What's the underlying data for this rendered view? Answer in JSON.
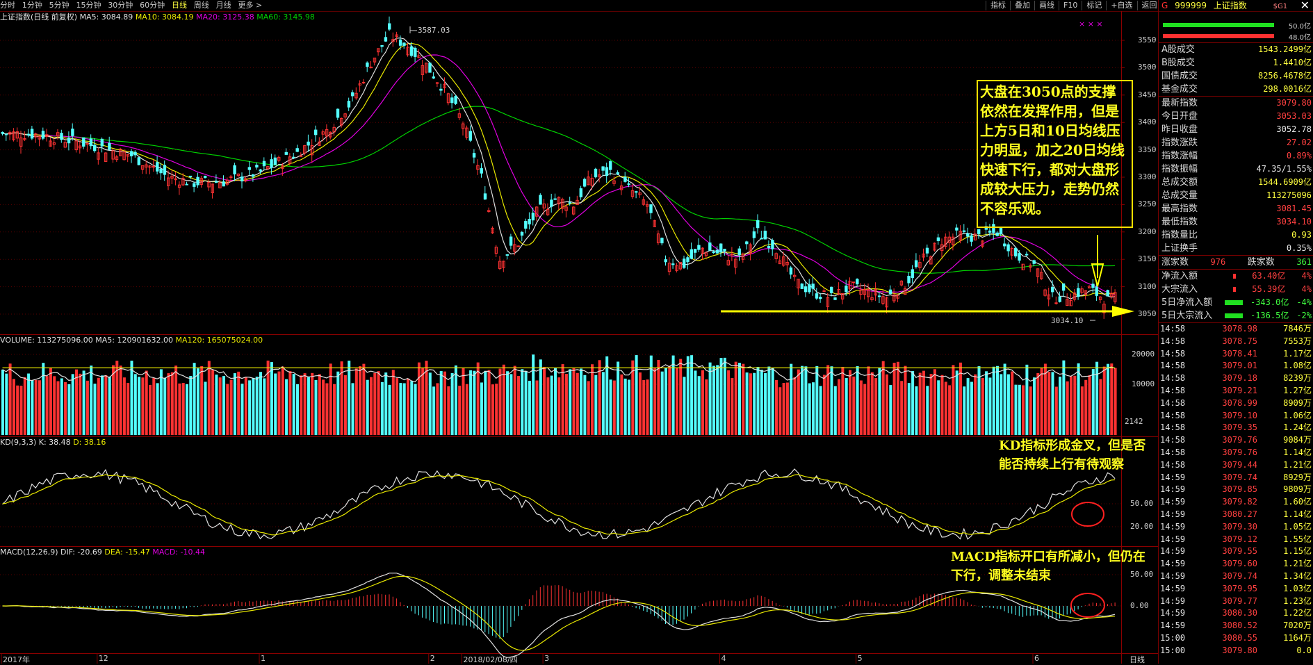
{
  "toolbar": {
    "periods": [
      "分时",
      "1分钟",
      "5分钟",
      "15分钟",
      "30分钟",
      "60分钟",
      "日线",
      "周线",
      "月线",
      "更多 >"
    ],
    "active_period": "日线",
    "right_tools": [
      "指标",
      "叠加",
      "画线",
      "F10",
      "标记",
      "+自选",
      "返回"
    ]
  },
  "main_legend": {
    "title": "上证指数(日线 前复权)",
    "ma5": "MA5: 3084.89",
    "ma10": "MA10: 3084.19",
    "ma20": "MA20: 3125.38",
    "ma60": "MA60: 3145.98"
  },
  "price_axis": [
    "3550",
    "3500",
    "3450",
    "3400",
    "3350",
    "3300",
    "3250",
    "3200",
    "3150",
    "3100",
    "3050"
  ],
  "high_label": "3587.03",
  "low_label": "3034.10",
  "note_main": "大盘在3050点的支撑依然在发挥作用，但是上方5日和10日均线压力明显，加之20日均线快速下行，都对大盘形成较大压力，走势仍然不容乐观。",
  "volume_legend": {
    "volume": "VOLUME: 113275096.00",
    "ma5": "MA5: 120901632.00",
    "ma120": "MA120: 165075024.00"
  },
  "volume_axis": [
    "20000",
    "10000"
  ],
  "volume_unit_label": "2142",
  "kd_legend": {
    "name": "KD(9,3,3)",
    "k": "K: 38.48",
    "d": "D: 38.16"
  },
  "kd_axis": [
    "50.00",
    "20.00"
  ],
  "note_kd": "KD指标形成金叉，但是否能否持续上行有待观察",
  "macd_legend": {
    "name": "MACD(12,26,9)",
    "dif": "DIF: -20.69",
    "dea": "DEA: -15.47",
    "macd": "MACD: -10.44"
  },
  "macd_axis": [
    "50.00",
    "0.00"
  ],
  "note_macd": "MACD指标开口有所减小，但仍在下行，调整未结束",
  "x_axis": [
    "2017年",
    "12",
    "1",
    "2",
    "2018/02/08/四",
    "3",
    "4",
    "5",
    "6"
  ],
  "x_mode": "日线",
  "stock_header": {
    "flag": "G",
    "code": "999999",
    "name": "上证指数",
    "mark": "$G1"
  },
  "ratio": {
    "top": "50.0亿",
    "bottom": "48.0亿"
  },
  "quotes": [
    {
      "label": "A股成交",
      "value": "1543.2499亿",
      "tone": "yl"
    },
    {
      "label": "B股成交",
      "value": "1.4410亿",
      "tone": "yl"
    },
    {
      "label": "国债成交",
      "value": "8256.4678亿",
      "tone": "yl"
    },
    {
      "label": "基金成交",
      "value": "298.0016亿",
      "tone": "yl"
    },
    {
      "label": "最新指数",
      "value": "3079.80",
      "tone": "up"
    },
    {
      "label": "今日开盘",
      "value": "3053.03",
      "tone": "up"
    },
    {
      "label": "昨日收盘",
      "value": "3052.78",
      "tone": "w"
    },
    {
      "label": "指数涨跌",
      "value": "27.02",
      "tone": "up"
    },
    {
      "label": "指数涨幅",
      "value": "0.89%",
      "tone": "up"
    },
    {
      "label": "指数振幅",
      "value": "47.35/1.55%",
      "tone": "w"
    },
    {
      "label": "总成交额",
      "value": "1544.6909亿",
      "tone": "yl"
    },
    {
      "label": "总成交量",
      "value": "113275096",
      "tone": "yl"
    },
    {
      "label": "最高指数",
      "value": "3081.45",
      "tone": "up"
    },
    {
      "label": "最低指数",
      "value": "3034.10",
      "tone": "up"
    },
    {
      "label": "指数量比",
      "value": "0.93",
      "tone": "yl"
    },
    {
      "label": "上证换手",
      "value": "0.35%",
      "tone": "w"
    }
  ],
  "rise_fall": {
    "rise_label": "涨家数",
    "rise": "976",
    "fall_label": "跌家数",
    "fall": "361"
  },
  "flows": [
    {
      "label": "净流入额",
      "value": "63.40亿",
      "pct": "4%",
      "tone": "up"
    },
    {
      "label": "大宗流入",
      "value": "55.39亿",
      "pct": "4%",
      "tone": "up"
    },
    {
      "label": "5日净流入额",
      "value": "-343.0亿",
      "pct": "-4%",
      "tone": "dn"
    },
    {
      "label": "5日大宗流入",
      "value": "-136.5亿",
      "pct": "-2%",
      "tone": "dn"
    }
  ],
  "ticks": [
    {
      "t": "14:58",
      "p": "3078.98",
      "v": "7846万"
    },
    {
      "t": "14:58",
      "p": "3078.75",
      "v": "7553万"
    },
    {
      "t": "14:58",
      "p": "3078.41",
      "v": "1.17亿"
    },
    {
      "t": "14:58",
      "p": "3079.01",
      "v": "1.08亿"
    },
    {
      "t": "14:58",
      "p": "3079.18",
      "v": "8239万"
    },
    {
      "t": "14:58",
      "p": "3079.21",
      "v": "1.27亿"
    },
    {
      "t": "14:58",
      "p": "3078.99",
      "v": "8909万"
    },
    {
      "t": "14:58",
      "p": "3079.10",
      "v": "1.06亿"
    },
    {
      "t": "14:58",
      "p": "3079.35",
      "v": "1.24亿"
    },
    {
      "t": "14:58",
      "p": "3079.76",
      "v": "9084万"
    },
    {
      "t": "14:58",
      "p": "3079.76",
      "v": "1.14亿"
    },
    {
      "t": "14:58",
      "p": "3079.44",
      "v": "1.21亿"
    },
    {
      "t": "14:59",
      "p": "3079.74",
      "v": "8929万"
    },
    {
      "t": "14:59",
      "p": "3079.85",
      "v": "9809万"
    },
    {
      "t": "14:59",
      "p": "3079.82",
      "v": "1.60亿"
    },
    {
      "t": "14:59",
      "p": "3080.27",
      "v": "1.14亿"
    },
    {
      "t": "14:59",
      "p": "3079.30",
      "v": "1.05亿"
    },
    {
      "t": "14:59",
      "p": "3079.12",
      "v": "1.55亿"
    },
    {
      "t": "14:59",
      "p": "3079.55",
      "v": "1.15亿"
    },
    {
      "t": "14:59",
      "p": "3079.60",
      "v": "1.21亿"
    },
    {
      "t": "14:59",
      "p": "3079.74",
      "v": "1.34亿"
    },
    {
      "t": "14:59",
      "p": "3079.95",
      "v": "1.03亿"
    },
    {
      "t": "14:59",
      "p": "3079.77",
      "v": "1.23亿"
    },
    {
      "t": "14:59",
      "p": "3080.30",
      "v": "1.22亿"
    },
    {
      "t": "14:59",
      "p": "3080.52",
      "v": "7020万"
    },
    {
      "t": "15:00",
      "p": "3080.55",
      "v": "1164万"
    },
    {
      "t": "15:00",
      "p": "3079.80",
      "v": "0.0"
    }
  ],
  "close_label": "✕"
}
